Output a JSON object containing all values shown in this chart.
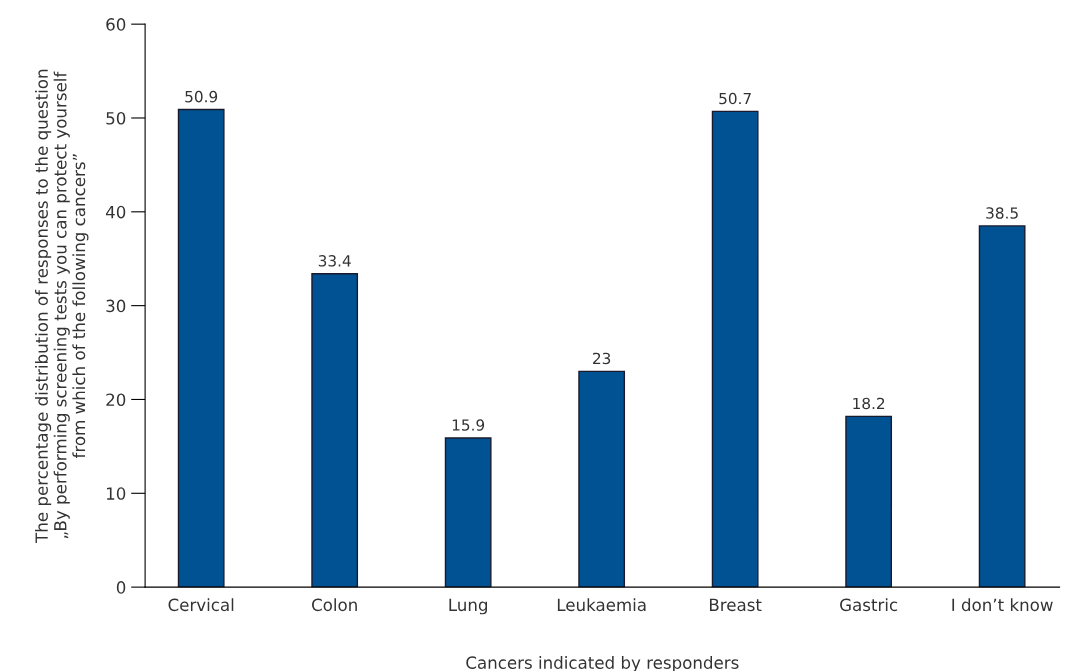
{
  "chart_data": {
    "type": "bar",
    "xlabel": "Cancers indicated by responders",
    "ylabel": "The percentage distribution of responses to the question\n„By performing screening tests you can protect yourself\nfrom which of the following cancers”",
    "categories": [
      "Cervical",
      "Colon",
      "Lung",
      "Leukaemia",
      "Breast",
      "Gastric",
      "I don’t know"
    ],
    "values": [
      50.9,
      33.4,
      15.9,
      23,
      50.7,
      18.2,
      38.5
    ],
    "color": "#005293",
    "ylim": [
      0,
      60
    ],
    "yticks": [
      0,
      10,
      20,
      30,
      40,
      50,
      60
    ],
    "data_labels": true,
    "grid": false,
    "legend": false
  }
}
